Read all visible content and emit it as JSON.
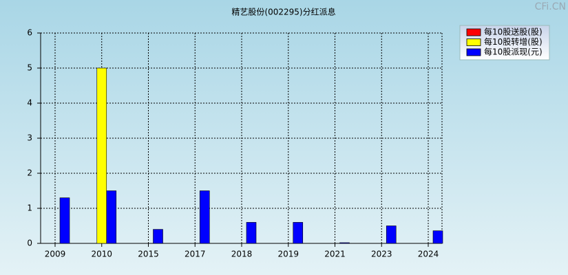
{
  "chart_data": {
    "type": "bar",
    "title": "精艺股份(002295)分红派息",
    "watermark": "CFi.CN",
    "categories": [
      "2009",
      "2010",
      "2015",
      "2017",
      "2018",
      "2019",
      "2021",
      "2023",
      "2024"
    ],
    "series": [
      {
        "name": "每10股送股(股)",
        "color": "#ff0000",
        "values": [
          null,
          null,
          null,
          null,
          null,
          null,
          null,
          null,
          null
        ]
      },
      {
        "name": "每10股转增(股)",
        "color": "#ffff00",
        "values": [
          null,
          5,
          null,
          null,
          null,
          null,
          null,
          null,
          null
        ]
      },
      {
        "name": "每10股派现(元)",
        "color": "#0000ff",
        "values": [
          1.3,
          1.5,
          0.4,
          1.5,
          0.6,
          0.6,
          0.02,
          0.5,
          0.36
        ]
      }
    ],
    "ylim": [
      0,
      6
    ],
    "yticks": [
      0,
      1,
      2,
      3,
      4,
      5,
      6
    ],
    "grid": true,
    "legend": "top-right"
  }
}
